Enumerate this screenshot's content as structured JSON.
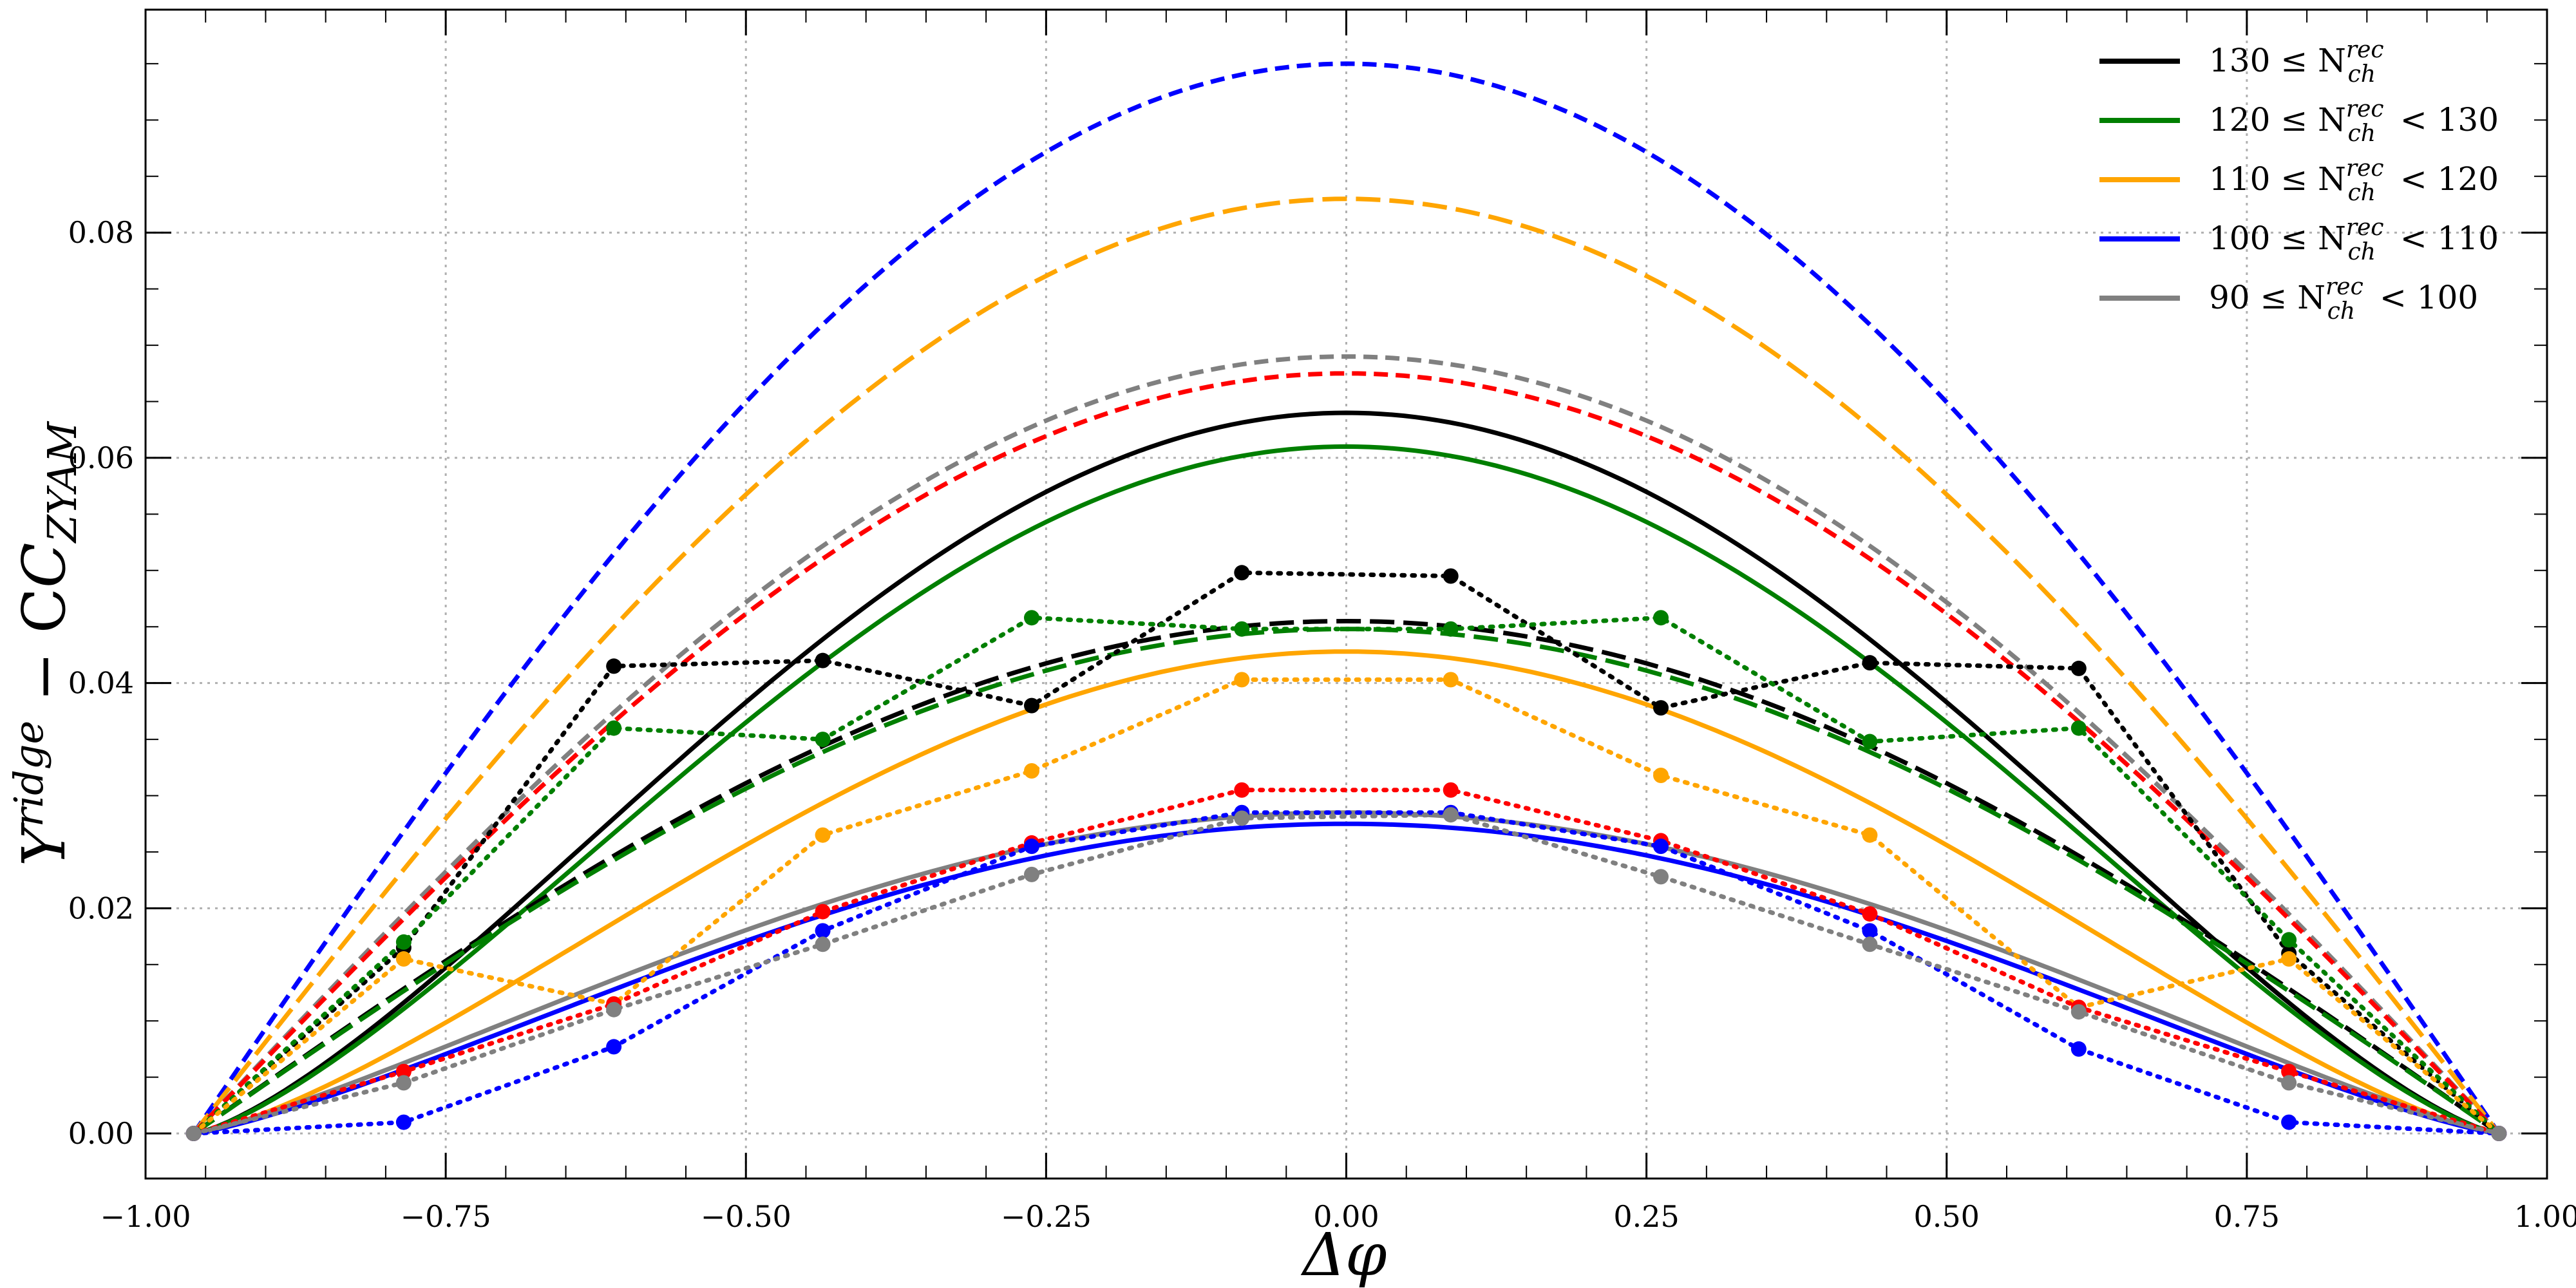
{
  "chart_data": {
    "type": "line",
    "xlabel": "Δφ",
    "ylabel_main": "Y",
    "ylabel_sup": "ridge",
    "ylabel_rest": " − C",
    "ylabel_sub": "ZYAM",
    "xlim": [
      -1.0,
      1.0
    ],
    "ylim": [
      -0.004,
      0.0998
    ],
    "grid": true,
    "legend_position": "top-right",
    "xticks": [
      -1.0,
      -0.75,
      -0.5,
      -0.25,
      0.0,
      0.25,
      0.5,
      0.75,
      1.0
    ],
    "xtick_labels": [
      "−1.00",
      "−0.75",
      "−0.50",
      "−0.25",
      "0.00",
      "0.25",
      "0.50",
      "0.75",
      "1.00"
    ],
    "yticks": [
      0.0,
      0.02,
      0.04,
      0.06,
      0.08
    ],
    "ytick_labels": [
      "0.00",
      "0.02",
      "0.04",
      "0.06",
      "0.08"
    ],
    "legend": [
      {
        "label": "130 ≤ N",
        "sub": "ch",
        "sup": "rec",
        "tail": "",
        "color": "#000000"
      },
      {
        "label": "120 ≤ N",
        "sub": "ch",
        "sup": "rec",
        "tail": " < 130",
        "color": "#007f00"
      },
      {
        "label": "110 ≤ N",
        "sub": "ch",
        "sup": "rec",
        "tail": " < 120",
        "color": "#ffa500"
      },
      {
        "label": "100 ≤ N",
        "sub": "ch",
        "sup": "rec",
        "tail": " < 110",
        "color": "#0000ff"
      },
      {
        "label": "90  ≤ N",
        "sub": "ch",
        "sup": "rec",
        "tail": " < 100",
        "color": "#808080"
      }
    ],
    "curves": [
      {
        "color": "#0000ff",
        "style": "dashed",
        "peak": 0.095,
        "shape": 1.0
      },
      {
        "color": "#ffa500",
        "style": "longdash",
        "peak": 0.083,
        "shape": 1.0
      },
      {
        "color": "#808080",
        "style": "dashed",
        "peak": 0.069,
        "shape": 1.0
      },
      {
        "color": "#ff0000",
        "style": "dashed",
        "peak": 0.0675,
        "shape": 1.0
      },
      {
        "color": "#000000",
        "style": "solid",
        "peak": 0.064,
        "shape": 1.35
      },
      {
        "color": "#007f00",
        "style": "solid",
        "peak": 0.061,
        "shape": 1.35
      },
      {
        "color": "#000000",
        "style": "longdash",
        "peak": 0.0455,
        "shape": 1.0
      },
      {
        "color": "#007f00",
        "style": "longdash",
        "peak": 0.0448,
        "shape": 1.0
      },
      {
        "color": "#ffa500",
        "style": "solid",
        "peak": 0.0428,
        "shape": 1.35
      },
      {
        "color": "#0000ff",
        "style": "solid",
        "peak": 0.0275,
        "shape": 1.25
      },
      {
        "color": "#808080",
        "style": "solid",
        "peak": 0.0285,
        "shape": 1.2
      }
    ],
    "points_x": [
      -0.96,
      -0.785,
      -0.61,
      -0.436,
      -0.262,
      -0.087,
      0.087,
      0.262,
      0.436,
      0.61,
      0.785,
      0.96
    ],
    "point_series": [
      {
        "color": "#000000",
        "y": [
          0.0,
          0.0165,
          0.0415,
          0.042,
          0.038,
          0.0498,
          0.0495,
          0.0378,
          0.0418,
          0.0413,
          0.016,
          0.0
        ]
      },
      {
        "color": "#007f00",
        "y": [
          0.0,
          0.017,
          0.036,
          0.035,
          0.0458,
          0.0448,
          0.0448,
          0.0458,
          0.0348,
          0.036,
          0.0172,
          0.0
        ]
      },
      {
        "color": "#ffa500",
        "y": [
          0.0,
          0.0155,
          0.0115,
          0.0265,
          0.0322,
          0.0403,
          0.0403,
          0.0318,
          0.0265,
          0.0112,
          0.0155,
          0.0
        ]
      },
      {
        "color": "#ff0000",
        "y": [
          0.0,
          0.0055,
          0.0115,
          0.0197,
          0.0258,
          0.0305,
          0.0305,
          0.026,
          0.0195,
          0.0112,
          0.0055,
          0.0
        ]
      },
      {
        "color": "#0000ff",
        "y": [
          0.0,
          0.001,
          0.0077,
          0.018,
          0.0255,
          0.0285,
          0.0285,
          0.0255,
          0.018,
          0.0075,
          0.001,
          0.0
        ]
      },
      {
        "color": "#808080",
        "y": [
          0.0,
          0.0045,
          0.011,
          0.0168,
          0.023,
          0.028,
          0.0283,
          0.0228,
          0.0168,
          0.0108,
          0.0045,
          0.0
        ]
      }
    ]
  }
}
